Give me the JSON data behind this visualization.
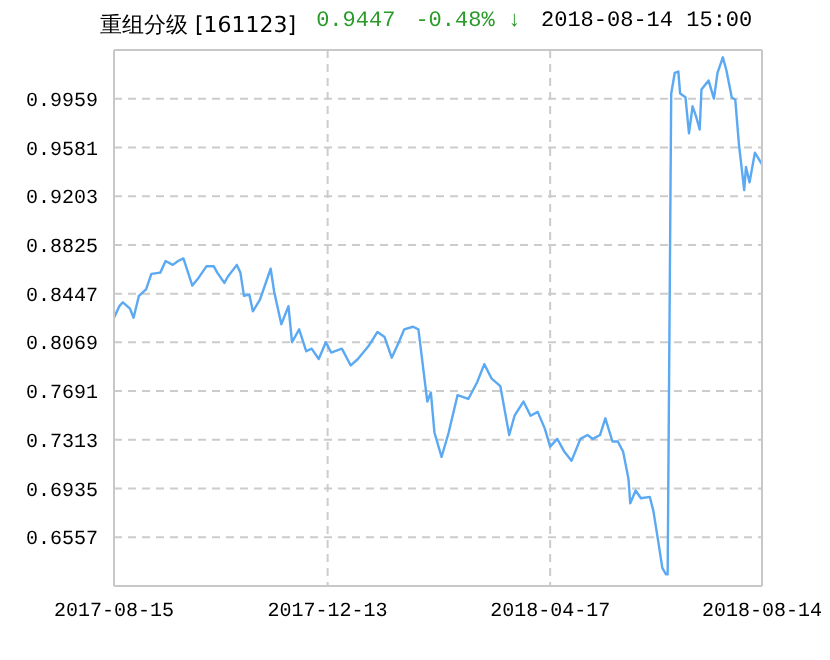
{
  "chart_data": {
    "type": "line",
    "title": "重组分级 [161123]",
    "annotations": [
      "0.9447",
      "-0.48% ↓",
      "2018-08-14 15:00"
    ],
    "x": [
      "2017-08-15",
      "2017-08-18",
      "2017-08-20",
      "2017-08-24",
      "2017-08-26",
      "2017-08-29",
      "2017-09-02",
      "2017-09-05",
      "2017-09-10",
      "2017-09-13",
      "2017-09-17",
      "2017-09-20",
      "2017-09-23",
      "2017-09-28",
      "2017-10-01",
      "2017-10-06",
      "2017-10-10",
      "2017-10-12",
      "2017-10-16",
      "2017-10-18",
      "2017-10-23",
      "2017-10-25",
      "2017-10-27",
      "2017-10-30",
      "2017-11-01",
      "2017-11-05",
      "2017-11-11",
      "2017-11-13",
      "2017-11-17",
      "2017-11-21",
      "2017-11-23",
      "2017-11-27",
      "2017-12-01",
      "2017-12-04",
      "2017-12-08",
      "2017-12-12",
      "2017-12-15",
      "2017-12-21",
      "2017-12-26",
      "2017-12-30",
      "2018-01-05",
      "2018-01-10",
      "2018-01-14",
      "2018-01-18",
      "2018-01-22",
      "2018-01-25",
      "2018-01-30",
      "2018-02-02",
      "2018-02-07",
      "2018-02-09",
      "2018-02-11",
      "2018-02-15",
      "2018-02-19",
      "2018-02-24",
      "2018-03-02",
      "2018-03-07",
      "2018-03-11",
      "2018-03-15",
      "2018-03-20",
      "2018-03-25",
      "2018-03-28",
      "2018-04-02",
      "2018-04-06",
      "2018-04-10",
      "2018-04-14",
      "2018-04-17",
      "2018-04-21",
      "2018-04-25",
      "2018-04-29",
      "2018-05-04",
      "2018-05-08",
      "2018-05-11",
      "2018-05-15",
      "2018-05-18",
      "2018-05-22",
      "2018-05-25",
      "2018-05-28",
      "2018-05-31",
      "2018-06-01",
      "2018-06-04",
      "2018-06-07",
      "2018-06-12",
      "2018-06-14",
      "2018-06-17",
      "2018-06-19",
      "2018-06-21",
      "2018-06-22",
      "2018-06-24",
      "2018-06-26",
      "2018-06-28",
      "2018-06-29",
      "2018-07-02",
      "2018-07-04",
      "2018-07-06",
      "2018-07-08",
      "2018-07-10",
      "2018-07-11",
      "2018-07-15",
      "2018-07-18",
      "2018-07-20",
      "2018-07-23",
      "2018-07-25",
      "2018-07-28",
      "2018-07-30",
      "2018-08-01",
      "2018-08-04",
      "2018-08-05",
      "2018-08-07",
      "2018-08-10",
      "2018-08-14"
    ],
    "series": [
      {
        "color": "#5aa9f2",
        "values": [
          0.826,
          0.835,
          0.838,
          0.833,
          0.826,
          0.843,
          0.848,
          0.86,
          0.861,
          0.87,
          0.867,
          0.87,
          0.872,
          0.851,
          0.856,
          0.866,
          0.866,
          0.861,
          0.853,
          0.858,
          0.867,
          0.861,
          0.843,
          0.844,
          0.831,
          0.84,
          0.864,
          0.846,
          0.821,
          0.835,
          0.807,
          0.817,
          0.8,
          0.802,
          0.794,
          0.807,
          0.799,
          0.802,
          0.789,
          0.794,
          0.804,
          0.815,
          0.811,
          0.795,
          0.807,
          0.817,
          0.819,
          0.817,
          0.761,
          0.768,
          0.737,
          0.718,
          0.737,
          0.766,
          0.763,
          0.776,
          0.79,
          0.779,
          0.773,
          0.735,
          0.75,
          0.761,
          0.75,
          0.753,
          0.74,
          0.726,
          0.732,
          0.722,
          0.715,
          0.732,
          0.735,
          0.732,
          0.735,
          0.748,
          0.73,
          0.73,
          0.722,
          0.701,
          0.682,
          0.692,
          0.686,
          0.687,
          0.676,
          0.65,
          0.632,
          0.627,
          0.627,
          1.0,
          1.016,
          1.017,
          1.0,
          0.997,
          0.969,
          0.99,
          0.982,
          0.972,
          1.003,
          1.01,
          0.996,
          1.016,
          1.028,
          1.018,
          0.997,
          0.995,
          0.961,
          0.925,
          0.943,
          0.931,
          0.954,
          0.945
        ]
      }
    ],
    "xlim": [
      "2017-08-15",
      "2018-08-14"
    ],
    "xticks": [
      "2017-08-15",
      "2017-12-13",
      "2018-04-17",
      "2018-08-14"
    ],
    "ylim": [
      0.6179,
      1.0337
    ],
    "yticks": [
      0.6557,
      0.6935,
      0.7313,
      0.7691,
      0.8069,
      0.8447,
      0.8825,
      0.9203,
      0.9581,
      0.9959
    ],
    "grid": true,
    "line_style": "solid",
    "marker": "none"
  }
}
